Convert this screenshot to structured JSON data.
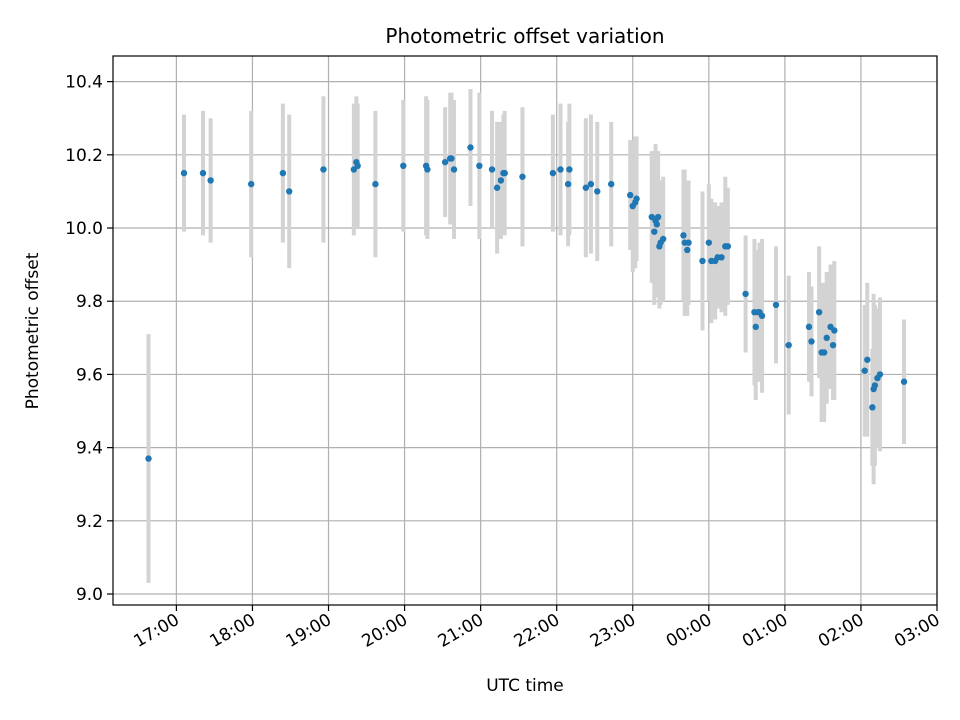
{
  "chart_data": {
    "type": "scatter",
    "title": "Photometric offset variation",
    "xlabel": "UTC time",
    "ylabel": "Photometric offset",
    "x_ticks": [
      "17:00",
      "18:00",
      "19:00",
      "20:00",
      "21:00",
      "22:00",
      "23:00",
      "00:00",
      "01:00",
      "02:00",
      "03:00"
    ],
    "y_ticks": [
      "9.0",
      "9.2",
      "9.4",
      "9.6",
      "9.8",
      "10.0",
      "10.2",
      "10.4"
    ],
    "ylim": [
      8.97,
      10.47
    ],
    "xlim": [
      "16:10",
      "03:00"
    ],
    "grid": true,
    "colors": {
      "point": "#1f77b4",
      "errorbar": "#d3d3d3",
      "grid": "#b0b0b0"
    },
    "series": [
      {
        "x": [
          "16:38",
          "17:06",
          "17:21",
          "17:27",
          "17:59",
          "18:24",
          "18:29",
          "18:56",
          "19:20",
          "19:22",
          "19:23",
          "19:37",
          "19:59",
          "20:17",
          "20:18",
          "20:32",
          "20:36",
          "20:37",
          "20:39",
          "20:52",
          "20:59",
          "21:09",
          "21:13",
          "21:16",
          "21:18",
          "21:19",
          "21:33",
          "21:57",
          "22:03",
          "22:09",
          "22:10",
          "22:23",
          "22:27",
          "22:32",
          "22:43",
          "22:58",
          "23:00",
          "23:02",
          "23:03",
          "23:15",
          "23:17",
          "23:18",
          "23:19",
          "23:20",
          "23:21",
          "23:22",
          "23:24",
          "23:40",
          "23:41",
          "23:43",
          "23:44",
          "23:55",
          "00:00",
          "00:02",
          "00:05",
          "00:07",
          "00:10",
          "00:13",
          "00:15",
          "00:29",
          "00:36",
          "00:37",
          "00:39",
          "00:40",
          "00:42",
          "00:53",
          "01:03",
          "01:19",
          "01:21",
          "01:27",
          "01:29",
          "01:31",
          "01:33",
          "01:36",
          "01:38",
          "01:39",
          "02:03",
          "02:05",
          "02:09",
          "02:10",
          "02:11",
          "02:13",
          "02:15",
          "02:34"
        ],
        "y": [
          9.37,
          10.15,
          10.15,
          10.13,
          10.12,
          10.15,
          10.1,
          10.16,
          10.16,
          10.18,
          10.17,
          10.12,
          10.17,
          10.17,
          10.16,
          10.18,
          10.19,
          10.19,
          10.16,
          10.22,
          10.17,
          10.16,
          10.11,
          10.13,
          10.15,
          10.15,
          10.14,
          10.15,
          10.16,
          10.12,
          10.16,
          10.11,
          10.12,
          10.1,
          10.12,
          10.09,
          10.06,
          10.07,
          10.08,
          10.03,
          9.99,
          10.02,
          10.01,
          10.03,
          9.95,
          9.96,
          9.97,
          9.98,
          9.96,
          9.94,
          9.96,
          9.91,
          9.96,
          9.91,
          9.91,
          9.92,
          9.92,
          9.95,
          9.95,
          9.82,
          9.77,
          9.73,
          9.77,
          9.77,
          9.76,
          9.79,
          9.68,
          9.73,
          9.69,
          9.77,
          9.66,
          9.66,
          9.7,
          9.73,
          9.68,
          9.72,
          9.61,
          9.64,
          9.51,
          9.56,
          9.57,
          9.59,
          9.6,
          9.58
        ],
        "err": [
          0.34,
          0.16,
          0.17,
          0.17,
          0.2,
          0.19,
          0.21,
          0.2,
          0.18,
          0.18,
          0.17,
          0.2,
          0.18,
          0.19,
          0.19,
          0.15,
          0.18,
          0.18,
          0.19,
          0.16,
          0.2,
          0.16,
          0.18,
          0.16,
          0.16,
          0.17,
          0.19,
          0.16,
          0.18,
          0.17,
          0.18,
          0.19,
          0.19,
          0.19,
          0.17,
          0.15,
          0.18,
          0.18,
          0.17,
          0.18,
          0.2,
          0.21,
          0.2,
          0.18,
          0.17,
          0.17,
          0.17,
          0.18,
          0.2,
          0.18,
          0.17,
          0.19,
          0.16,
          0.17,
          0.16,
          0.14,
          0.15,
          0.19,
          0.16,
          0.16,
          0.2,
          0.2,
          0.17,
          0.19,
          0.21,
          0.16,
          0.19,
          0.15,
          0.15,
          0.18,
          0.19,
          0.19,
          0.18,
          0.17,
          0.15,
          0.19,
          0.18,
          0.21,
          0.16,
          0.26,
          0.22,
          0.19,
          0.21,
          0.17
        ]
      }
    ]
  }
}
